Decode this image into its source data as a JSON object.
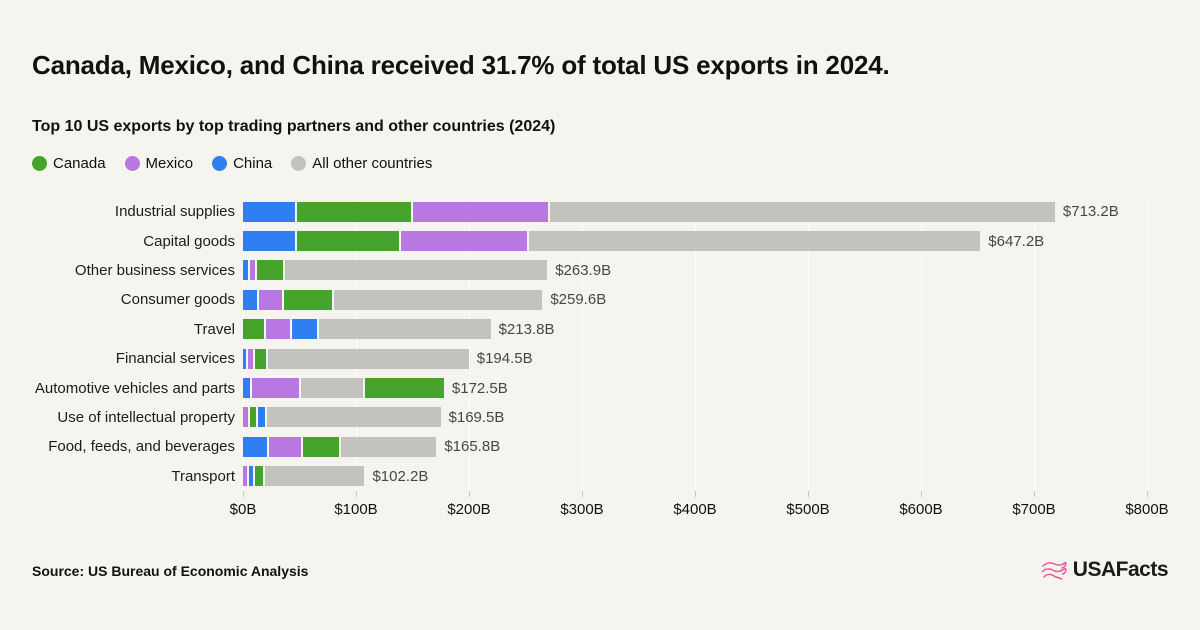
{
  "header": {
    "title": "Canada, Mexico, and China received 31.7% of total US exports in 2024.",
    "subtitle": "Top 10 US exports by top trading partners and other countries (2024)"
  },
  "legend": [
    {
      "name": "Canada",
      "color": "#46a32b"
    },
    {
      "name": "Mexico",
      "color": "#b877e1"
    },
    {
      "name": "China",
      "color": "#2f7ff2"
    },
    {
      "name": "All other countries",
      "color": "#c3c2be"
    }
  ],
  "chart_data": {
    "type": "bar",
    "orientation": "horizontal",
    "stacked": true,
    "title": "Top 10 US exports by top trading partners and other countries (2024)",
    "unit": "billions of US dollars",
    "x_axis": {
      "min": 0,
      "max": 800,
      "tick_step": 100,
      "ticks": [
        "$0B",
        "$100B",
        "$200B",
        "$300B",
        "$400B",
        "$500B",
        "$600B",
        "$700B",
        "$800B"
      ]
    },
    "series_colors": {
      "Canada": "#46a32b",
      "Mexico": "#b877e1",
      "China": "#2f7ff2",
      "All other countries": "#c3c2be"
    },
    "bars": [
      {
        "category": "Industrial supplies",
        "total": 713.2,
        "total_label": "$713.2B",
        "segments": [
          {
            "name": "China",
            "value": 46
          },
          {
            "name": "Canada",
            "value": 101
          },
          {
            "name": "Mexico",
            "value": 119
          },
          {
            "name": "All other countries",
            "value": 447.2
          }
        ]
      },
      {
        "category": "Capital goods",
        "total": 647.2,
        "total_label": "$647.2B",
        "segments": [
          {
            "name": "China",
            "value": 46
          },
          {
            "name": "Canada",
            "value": 90
          },
          {
            "name": "Mexico",
            "value": 112
          },
          {
            "name": "All other countries",
            "value": 399.2
          }
        ]
      },
      {
        "category": "Other business services",
        "total": 263.9,
        "total_label": "$263.9B",
        "segments": [
          {
            "name": "China",
            "value": 4
          },
          {
            "name": "Mexico",
            "value": 5
          },
          {
            "name": "Canada",
            "value": 23
          },
          {
            "name": "All other countries",
            "value": 231.9
          }
        ]
      },
      {
        "category": "Consumer goods",
        "total": 259.6,
        "total_label": "$259.6B",
        "segments": [
          {
            "name": "China",
            "value": 12
          },
          {
            "name": "Mexico",
            "value": 21
          },
          {
            "name": "Canada",
            "value": 42
          },
          {
            "name": "All other countries",
            "value": 184.6
          }
        ]
      },
      {
        "category": "Travel",
        "total": 213.8,
        "total_label": "$213.8B",
        "segments": [
          {
            "name": "Canada",
            "value": 19
          },
          {
            "name": "Mexico",
            "value": 21
          },
          {
            "name": "China",
            "value": 22
          },
          {
            "name": "All other countries",
            "value": 151.8
          }
        ]
      },
      {
        "category": "Financial services",
        "total": 194.5,
        "total_label": "$194.5B",
        "segments": [
          {
            "name": "China",
            "value": 3
          },
          {
            "name": "Mexico",
            "value": 4
          },
          {
            "name": "Canada",
            "value": 10
          },
          {
            "name": "All other countries",
            "value": 177.5
          }
        ]
      },
      {
        "category": "Automotive vehicles and parts",
        "total": 172.5,
        "total_label": "$172.5B",
        "segments": [
          {
            "name": "China",
            "value": 6
          },
          {
            "name": "Mexico",
            "value": 42
          },
          {
            "name": "All other countries",
            "value": 55
          },
          {
            "name": "Canada",
            "value": 69.5
          }
        ]
      },
      {
        "category": "Use of intellectual property",
        "total": 169.5,
        "total_label": "$169.5B",
        "segments": [
          {
            "name": "Mexico",
            "value": 4
          },
          {
            "name": "Canada",
            "value": 5.5
          },
          {
            "name": "China",
            "value": 6.5
          },
          {
            "name": "All other countries",
            "value": 153.5
          }
        ]
      },
      {
        "category": "Food, feeds, and beverages",
        "total": 165.8,
        "total_label": "$165.8B",
        "segments": [
          {
            "name": "China",
            "value": 21
          },
          {
            "name": "Mexico",
            "value": 29
          },
          {
            "name": "Canada",
            "value": 31
          },
          {
            "name": "All other countries",
            "value": 84.8
          }
        ]
      },
      {
        "category": "Transport",
        "total": 102.2,
        "total_label": "$102.2B",
        "segments": [
          {
            "name": "Mexico",
            "value": 3.5
          },
          {
            "name": "China",
            "value": 4
          },
          {
            "name": "Canada",
            "value": 6.5
          },
          {
            "name": "All other countries",
            "value": 88.2
          }
        ]
      }
    ]
  },
  "footer": {
    "source": "Source: US Bureau of Economic Analysis",
    "brand": "USAFacts",
    "brand_color": "#f0549e"
  }
}
